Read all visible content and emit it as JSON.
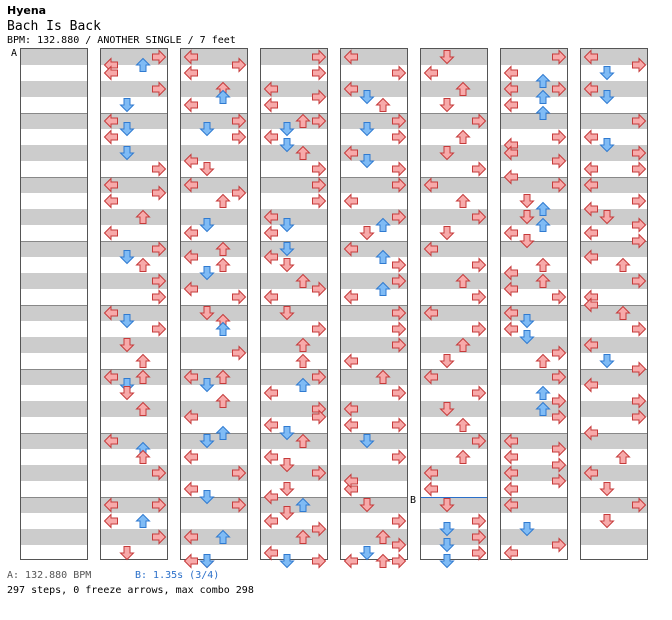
{
  "header": {
    "artist": "Hyena",
    "title": "Bach Is Back",
    "info": "BPM: 132.880 / ANOTHER SINGLE / 7 feet"
  },
  "markers": {
    "a": "A",
    "b": "B"
  },
  "footer": {
    "a_label": "A: 132.880 BPM",
    "b_label": "B: 1.35s (3/4)",
    "stats": "297 steps, 0 freeze arrows, max combo 298"
  },
  "colors": {
    "red_fill": "#f7aaaa",
    "red_stroke": "#c63a3a",
    "blue_fill": "#7fbbf5",
    "blue_stroke": "#2f7ad0",
    "stripe": "#cccccc",
    "bpm_line": "#2a6fc9"
  },
  "lanes": [
    "L",
    "D",
    "U",
    "R"
  ],
  "columns": [
    {
      "notes": []
    },
    {
      "notes": [
        [
          0,
          "R",
          8
        ],
        [
          0,
          "L",
          16
        ],
        [
          2,
          "U",
          16
        ],
        [
          0,
          "L",
          24
        ],
        [
          0,
          "R",
          40
        ],
        [
          1,
          "D",
          56
        ],
        [
          2,
          "L",
          72
        ],
        [
          1,
          "D",
          80
        ],
        [
          2,
          "L",
          88
        ],
        [
          1,
          "D",
          104
        ],
        [
          0,
          "R",
          120
        ],
        [
          0,
          "L",
          136
        ],
        [
          0,
          "L",
          152
        ],
        [
          2,
          "R",
          144
        ],
        [
          0,
          "U",
          168
        ],
        [
          0,
          "L",
          184
        ],
        [
          0,
          "R",
          200
        ],
        [
          1,
          "D",
          208
        ],
        [
          0,
          "U",
          216
        ],
        [
          0,
          "R",
          232
        ],
        [
          0,
          "R",
          248
        ],
        [
          0,
          "L",
          264
        ],
        [
          1,
          "D",
          272
        ],
        [
          0,
          "R",
          280
        ],
        [
          0,
          "D",
          296
        ],
        [
          0,
          "U",
          312
        ],
        [
          0,
          "L",
          328
        ],
        [
          1,
          "D",
          336
        ],
        [
          0,
          "U",
          328
        ],
        [
          0,
          "D",
          344
        ],
        [
          0,
          "U",
          360
        ],
        [
          0,
          "L",
          392
        ],
        [
          1,
          "U",
          400
        ],
        [
          0,
          "U",
          408
        ],
        [
          0,
          "R",
          424
        ],
        [
          0,
          "L",
          456
        ],
        [
          2,
          "U",
          472
        ],
        [
          0,
          "R",
          456
        ],
        [
          0,
          "L",
          472
        ],
        [
          0,
          "R",
          488
        ],
        [
          0,
          "D",
          504
        ]
      ]
    },
    {
      "notes": [
        [
          0,
          "L",
          8
        ],
        [
          2,
          "R",
          16
        ],
        [
          0,
          "L",
          24
        ],
        [
          0,
          "U",
          40
        ],
        [
          1,
          "U",
          48
        ],
        [
          0,
          "L",
          56
        ],
        [
          0,
          "R",
          72
        ],
        [
          1,
          "D",
          80
        ],
        [
          0,
          "R",
          88
        ],
        [
          2,
          "L",
          112
        ],
        [
          0,
          "D",
          120
        ],
        [
          0,
          "L",
          136
        ],
        [
          2,
          "R",
          144
        ],
        [
          0,
          "U",
          152
        ],
        [
          0,
          "L",
          184
        ],
        [
          1,
          "D",
          176
        ],
        [
          0,
          "U",
          200
        ],
        [
          0,
          "L",
          208
        ],
        [
          0,
          "U",
          216
        ],
        [
          1,
          "D",
          224
        ],
        [
          2,
          "L",
          240
        ],
        [
          0,
          "R",
          248
        ],
        [
          0,
          "D",
          264
        ],
        [
          0,
          "U",
          272
        ],
        [
          1,
          "U",
          280
        ],
        [
          2,
          "R",
          304
        ],
        [
          0,
          "U",
          328
        ],
        [
          0,
          "L",
          328
        ],
        [
          1,
          "D",
          336
        ],
        [
          0,
          "U",
          352
        ],
        [
          0,
          "L",
          368
        ],
        [
          2,
          "U",
          384
        ],
        [
          1,
          "D",
          392
        ],
        [
          0,
          "L",
          408
        ],
        [
          0,
          "R",
          424
        ],
        [
          0,
          "L",
          440
        ],
        [
          1,
          "D",
          448
        ],
        [
          0,
          "R",
          456
        ],
        [
          0,
          "L",
          488
        ],
        [
          1,
          "U",
          488
        ],
        [
          0,
          "D",
          520
        ],
        [
          0,
          "L",
          552
        ],
        [
          1,
          "D",
          544
        ]
      ]
    },
    {
      "notes": [
        [
          0,
          "R",
          8
        ],
        [
          0,
          "R",
          24
        ],
        [
          0,
          "L",
          40
        ],
        [
          2,
          "R",
          48
        ],
        [
          0,
          "L",
          56
        ],
        [
          0,
          "R",
          72
        ],
        [
          1,
          "D",
          80
        ],
        [
          0,
          "U",
          72
        ],
        [
          0,
          "L",
          88
        ],
        [
          1,
          "D",
          96
        ],
        [
          0,
          "U",
          104
        ],
        [
          0,
          "R",
          120
        ],
        [
          0,
          "R",
          136
        ],
        [
          0,
          "R",
          152
        ],
        [
          0,
          "L",
          168
        ],
        [
          1,
          "D",
          176
        ],
        [
          0,
          "L",
          184
        ],
        [
          1,
          "D",
          200
        ],
        [
          2,
          "L",
          208
        ],
        [
          0,
          "D",
          216
        ],
        [
          0,
          "U",
          232
        ],
        [
          0,
          "R",
          240
        ],
        [
          0,
          "L",
          248
        ],
        [
          0,
          "D",
          264
        ],
        [
          0,
          "R",
          280
        ],
        [
          0,
          "U",
          296
        ],
        [
          0,
          "U",
          312
        ],
        [
          0,
          "R",
          328
        ],
        [
          1,
          "U",
          336
        ],
        [
          0,
          "L",
          344
        ],
        [
          0,
          "R",
          360
        ],
        [
          0,
          "L",
          376
        ],
        [
          0,
          "R",
          368
        ],
        [
          1,
          "D",
          384
        ],
        [
          0,
          "U",
          392
        ],
        [
          0,
          "L",
          408
        ],
        [
          0,
          "D",
          416
        ],
        [
          0,
          "R",
          424
        ],
        [
          0,
          "D",
          440
        ],
        [
          2,
          "L",
          448
        ],
        [
          1,
          "U",
          456
        ],
        [
          0,
          "D",
          464
        ],
        [
          0,
          "L",
          472
        ],
        [
          0,
          "R",
          480
        ],
        [
          0,
          "U",
          488
        ],
        [
          0,
          "L",
          504
        ],
        [
          1,
          "D",
          512
        ],
        [
          0,
          "R",
          520
        ]
      ]
    },
    {
      "notes": [
        [
          0,
          "L",
          8
        ],
        [
          0,
          "R",
          24
        ],
        [
          0,
          "L",
          40
        ],
        [
          1,
          "D",
          48
        ],
        [
          0,
          "U",
          56
        ],
        [
          0,
          "R",
          72
        ],
        [
          1,
          "D",
          80
        ],
        [
          0,
          "R",
          88
        ],
        [
          0,
          "L",
          104
        ],
        [
          1,
          "D",
          112
        ],
        [
          0,
          "R",
          120
        ],
        [
          0,
          "L",
          152
        ],
        [
          0,
          "R",
          136
        ],
        [
          2,
          "U",
          176
        ],
        [
          0,
          "D",
          184
        ],
        [
          0,
          "R",
          168
        ],
        [
          0,
          "L",
          200
        ],
        [
          2,
          "U",
          208
        ],
        [
          0,
          "R",
          216
        ],
        [
          0,
          "R",
          232
        ],
        [
          0,
          "L",
          248
        ],
        [
          0,
          "R",
          264
        ],
        [
          2,
          "U",
          240
        ],
        [
          0,
          "R",
          280
        ],
        [
          0,
          "R",
          296
        ],
        [
          0,
          "L",
          312
        ],
        [
          0,
          "U",
          328
        ],
        [
          0,
          "R",
          344
        ],
        [
          0,
          "L",
          360
        ],
        [
          0,
          "R",
          376
        ],
        [
          0,
          "L",
          376
        ],
        [
          1,
          "D",
          392
        ],
        [
          0,
          "R",
          408
        ],
        [
          0,
          "L",
          440
        ],
        [
          0,
          "D",
          456
        ],
        [
          0,
          "R",
          472
        ],
        [
          2,
          "L",
          432
        ],
        [
          0,
          "U",
          488
        ],
        [
          0,
          "R",
          496
        ],
        [
          0,
          "L",
          512
        ],
        [
          1,
          "D",
          504
        ],
        [
          0,
          "U",
          520
        ],
        [
          0,
          "R",
          536
        ]
      ]
    },
    {
      "notes": [
        [
          0,
          "D",
          8
        ],
        [
          0,
          "L",
          24
        ],
        [
          0,
          "U",
          40
        ],
        [
          0,
          "D",
          56
        ],
        [
          0,
          "R",
          72
        ],
        [
          0,
          "U",
          88
        ],
        [
          0,
          "R",
          120
        ],
        [
          0,
          "D",
          104
        ],
        [
          0,
          "L",
          136
        ],
        [
          0,
          "U",
          152
        ],
        [
          0,
          "R",
          168
        ],
        [
          0,
          "D",
          184
        ],
        [
          0,
          "L",
          200
        ],
        [
          0,
          "R",
          216
        ],
        [
          0,
          "U",
          232
        ],
        [
          0,
          "R",
          248
        ],
        [
          0,
          "L",
          264
        ],
        [
          0,
          "R",
          280
        ],
        [
          0,
          "U",
          296
        ],
        [
          0,
          "D",
          312
        ],
        [
          0,
          "L",
          328
        ],
        [
          0,
          "R",
          344
        ],
        [
          0,
          "D",
          360
        ],
        [
          0,
          "U",
          376
        ],
        [
          0,
          "R",
          392
        ],
        [
          0,
          "L",
          424
        ],
        [
          0,
          "U",
          408
        ],
        [
          0,
          "L",
          440
        ],
        [
          0,
          "D",
          456
        ],
        [
          1,
          "D",
          480
        ],
        [
          0,
          "R",
          472
        ],
        [
          0,
          "R",
          488
        ],
        [
          1,
          "D",
          496
        ],
        [
          0,
          "R",
          504
        ],
        [
          1,
          "D",
          512
        ],
        [
          0,
          "R",
          504
        ]
      ]
    },
    {
      "notes": [
        [
          0,
          "R",
          8
        ],
        [
          0,
          "L",
          24
        ],
        [
          2,
          "U",
          32
        ],
        [
          0,
          "R",
          40
        ],
        [
          0,
          "L",
          40
        ],
        [
          2,
          "U",
          48
        ],
        [
          0,
          "L",
          56
        ],
        [
          2,
          "U",
          64
        ],
        [
          0,
          "R",
          88
        ],
        [
          0,
          "L",
          96
        ],
        [
          2,
          "L",
          104
        ],
        [
          0,
          "R",
          112
        ],
        [
          2,
          "L",
          128
        ],
        [
          0,
          "R",
          136
        ],
        [
          0,
          "D",
          152
        ],
        [
          2,
          "U",
          160
        ],
        [
          0,
          "D",
          168
        ],
        [
          2,
          "U",
          176
        ],
        [
          0,
          "L",
          184
        ],
        [
          0,
          "D",
          192
        ],
        [
          0,
          "U",
          216
        ],
        [
          2,
          "L",
          224
        ],
        [
          0,
          "U",
          232
        ],
        [
          2,
          "L",
          240
        ],
        [
          0,
          "R",
          248
        ],
        [
          0,
          "L",
          264
        ],
        [
          2,
          "D",
          272
        ],
        [
          0,
          "L",
          280
        ],
        [
          2,
          "D",
          288
        ],
        [
          0,
          "R",
          304
        ],
        [
          0,
          "U",
          312
        ],
        [
          0,
          "R",
          328
        ],
        [
          2,
          "U",
          344
        ],
        [
          0,
          "R",
          352
        ],
        [
          2,
          "U",
          360
        ],
        [
          0,
          "R",
          368
        ],
        [
          0,
          "L",
          392
        ],
        [
          2,
          "R",
          400
        ],
        [
          0,
          "L",
          408
        ],
        [
          2,
          "R",
          416
        ],
        [
          0,
          "L",
          424
        ],
        [
          2,
          "R",
          432
        ],
        [
          0,
          "L",
          440
        ],
        [
          0,
          "L",
          456
        ],
        [
          0,
          "R",
          496
        ],
        [
          2,
          "D",
          480
        ],
        [
          0,
          "L",
          504
        ]
      ]
    },
    {
      "notes": [
        [
          0,
          "L",
          8
        ],
        [
          2,
          "D",
          24
        ],
        [
          0,
          "R",
          16
        ],
        [
          0,
          "L",
          40
        ],
        [
          2,
          "D",
          48
        ],
        [
          0,
          "R",
          72
        ],
        [
          0,
          "L",
          88
        ],
        [
          2,
          "D",
          96
        ],
        [
          0,
          "R",
          104
        ],
        [
          0,
          "L",
          120
        ],
        [
          2,
          "R",
          120
        ],
        [
          0,
          "L",
          136
        ],
        [
          0,
          "R",
          152
        ],
        [
          2,
          "L",
          160
        ],
        [
          0,
          "D",
          168
        ],
        [
          0,
          "R",
          176
        ],
        [
          0,
          "L",
          184
        ],
        [
          2,
          "R",
          192
        ],
        [
          0,
          "L",
          208
        ],
        [
          0,
          "U",
          216
        ],
        [
          0,
          "R",
          232
        ],
        [
          0,
          "L",
          248
        ],
        [
          2,
          "L",
          256
        ],
        [
          0,
          "U",
          264
        ],
        [
          0,
          "R",
          280
        ],
        [
          0,
          "L",
          296
        ],
        [
          2,
          "D",
          312
        ],
        [
          0,
          "R",
          320
        ],
        [
          0,
          "L",
          336
        ],
        [
          0,
          "R",
          352
        ],
        [
          2,
          "R",
          368
        ],
        [
          0,
          "L",
          384
        ],
        [
          0,
          "U",
          408
        ],
        [
          0,
          "L",
          424
        ],
        [
          0,
          "D",
          440
        ],
        [
          0,
          "R",
          456
        ],
        [
          0,
          "D",
          472
        ]
      ]
    }
  ]
}
